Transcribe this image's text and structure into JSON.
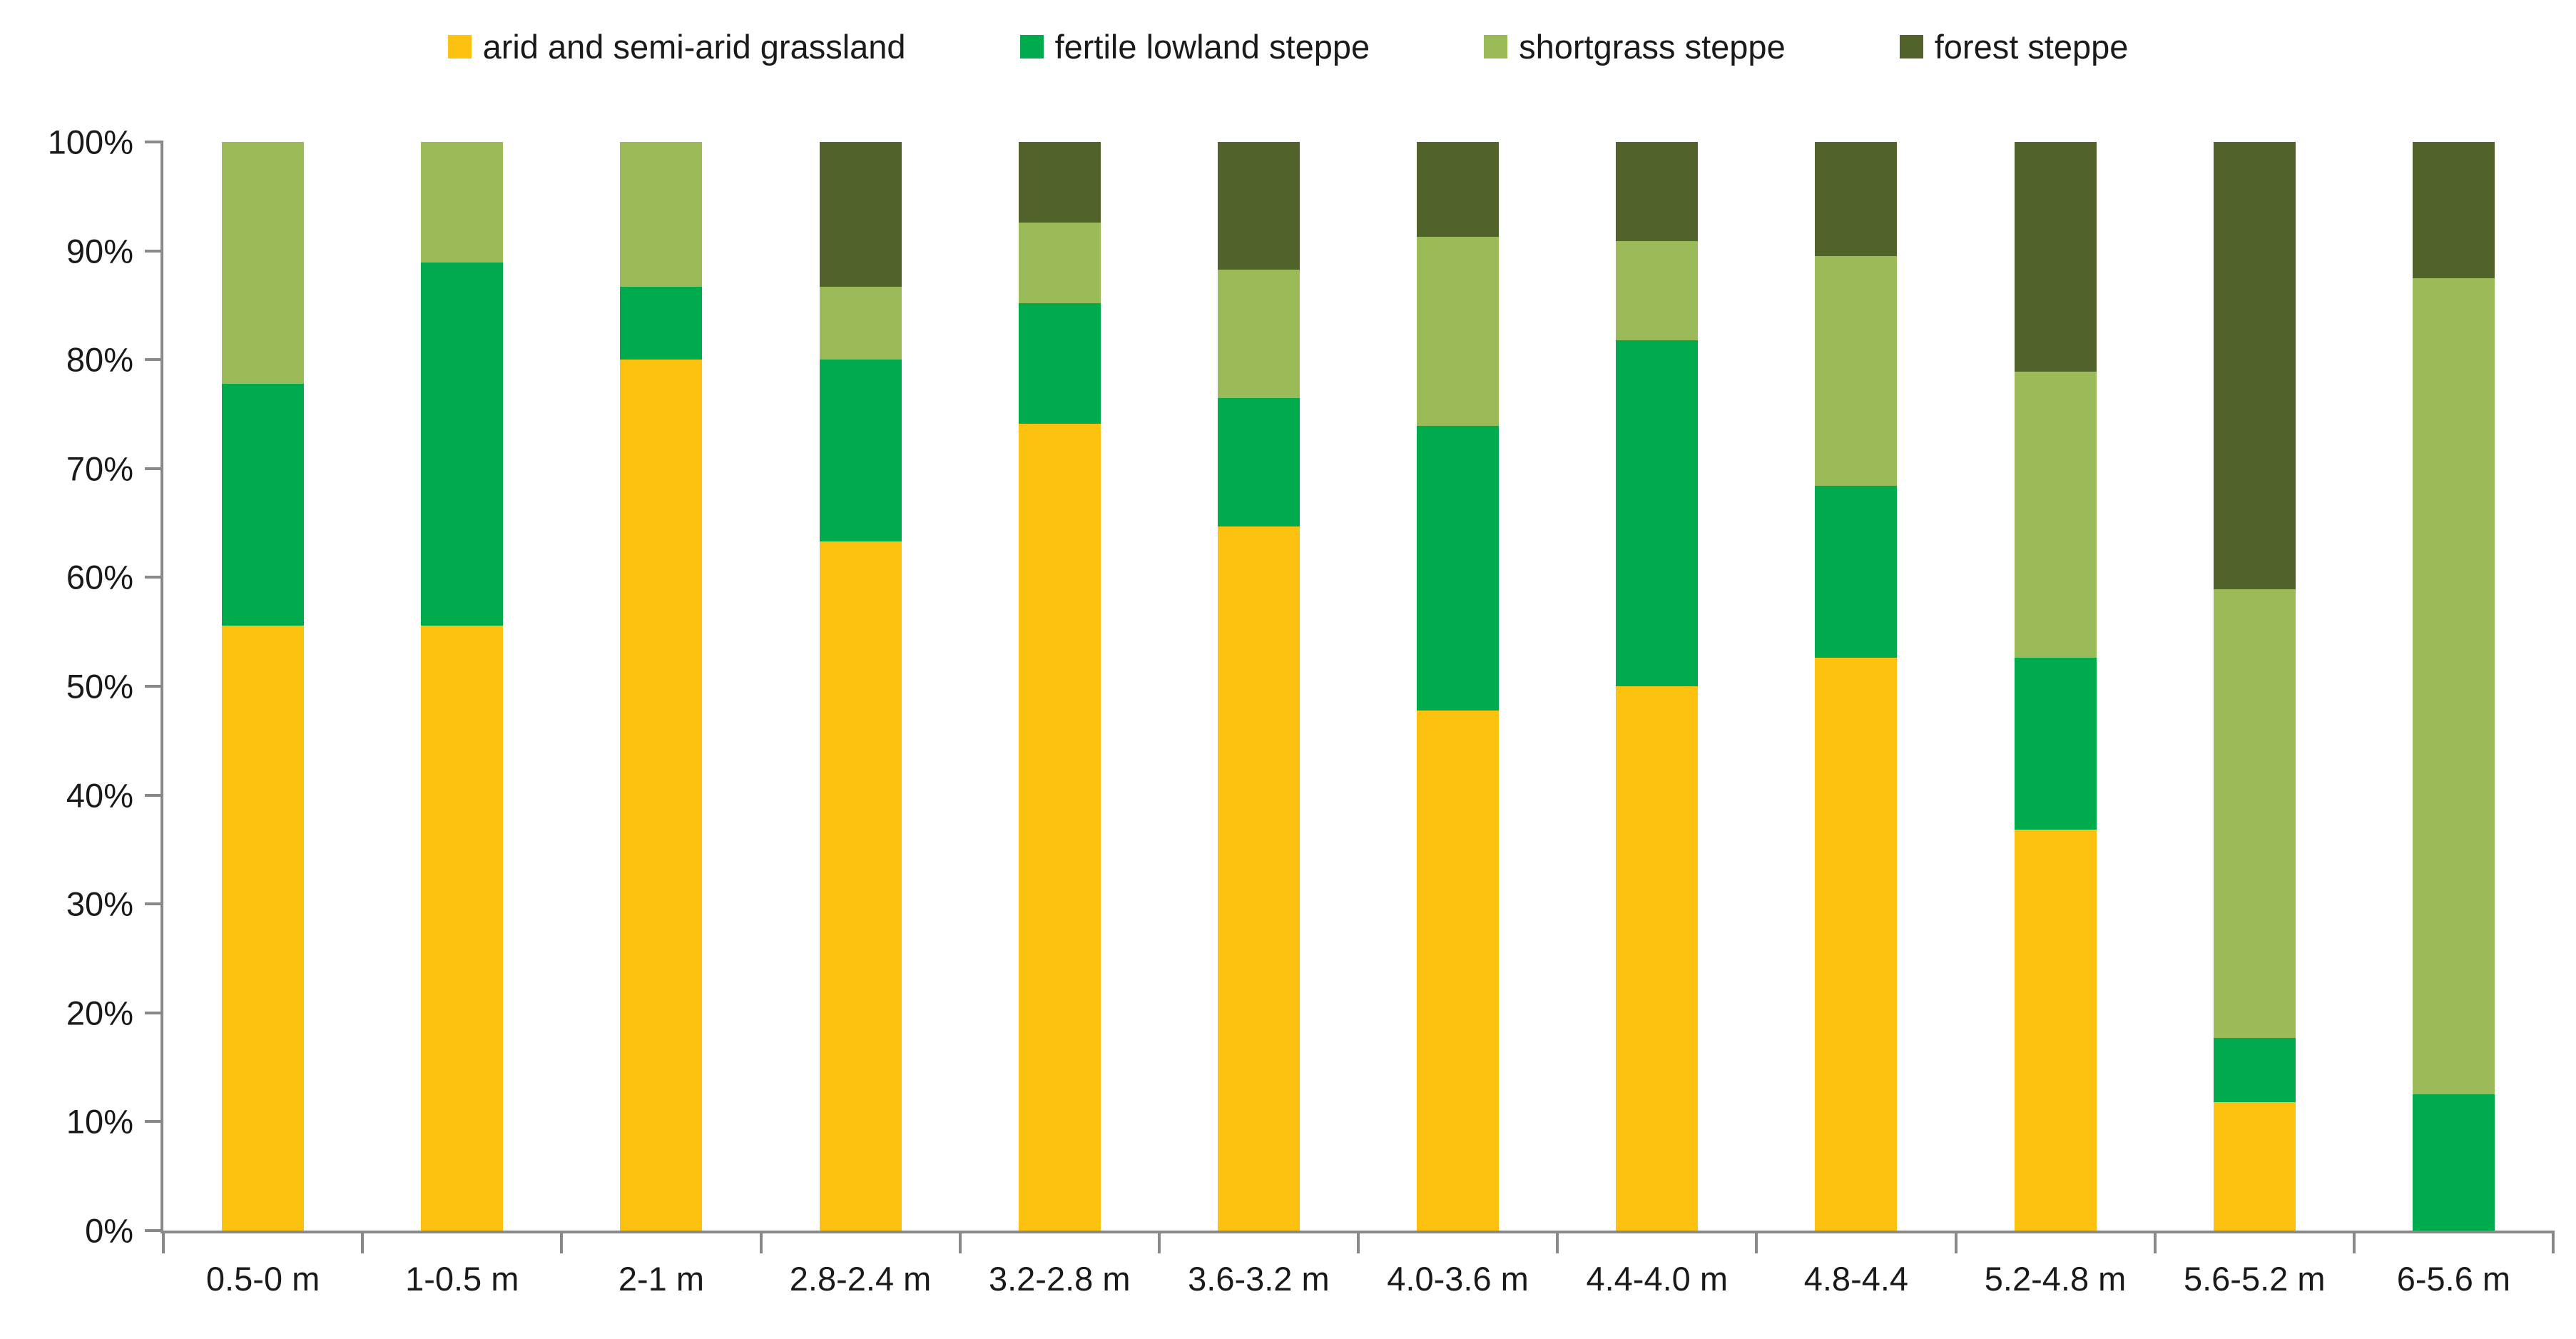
{
  "chart_data": {
    "type": "bar",
    "subtype": "stacked-100-percent",
    "title": "",
    "xlabel": "",
    "ylabel": "",
    "ylim": [
      0,
      100
    ],
    "grid": false,
    "legend_position": "top",
    "axis_color": "#898989",
    "text_color": "#1a1a1a",
    "yticks": [
      "0%",
      "10%",
      "20%",
      "30%",
      "40%",
      "50%",
      "60%",
      "70%",
      "80%",
      "90%",
      "100%"
    ],
    "categories": [
      "0.5-0 m",
      "1-0.5 m",
      "2-1 m",
      "2.8-2.4 m",
      "3.2-2.8 m",
      "3.6-3.2 m",
      "4.0-3.6 m",
      "4.4-4.0 m",
      "4.8-4.4",
      "5.2-4.8 m",
      "5.6-5.2 m",
      "6-5.6 m"
    ],
    "series": [
      {
        "name": "arid and semi-arid grassland",
        "color": "#FDC20F",
        "values": [
          55.6,
          55.6,
          80.0,
          63.3,
          74.1,
          64.7,
          47.8,
          50.0,
          52.6,
          36.8,
          11.8,
          0
        ]
      },
      {
        "name": "fertile lowland steppe",
        "color": "#00AB4E",
        "values": [
          22.2,
          33.3,
          6.7,
          16.7,
          11.1,
          11.8,
          26.1,
          31.8,
          15.8,
          15.8,
          5.9,
          12.5
        ]
      },
      {
        "name": "shortgrass steppe",
        "color": "#9BBA58",
        "values": [
          22.2,
          11.1,
          13.3,
          6.7,
          7.4,
          11.8,
          17.4,
          9.1,
          21.1,
          26.3,
          41.2,
          75.0
        ]
      },
      {
        "name": "forest steppe",
        "color": "#51632A",
        "values": [
          0,
          0,
          0,
          13.3,
          7.4,
          11.7,
          8.7,
          9.1,
          10.5,
          21.1,
          41.1,
          12.5
        ]
      }
    ]
  }
}
